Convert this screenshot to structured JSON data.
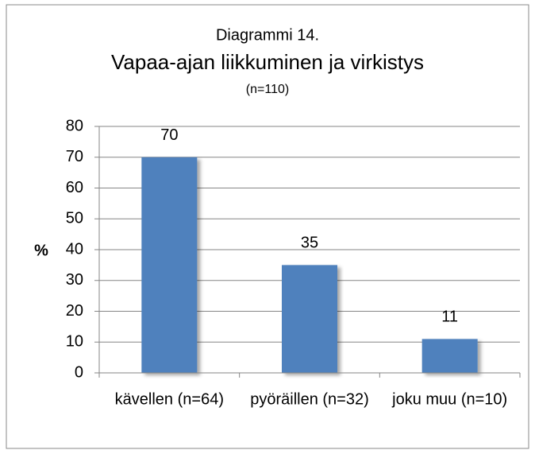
{
  "chart_data": {
    "type": "bar",
    "title_lines": [
      "Diagrammi 14.",
      "Vapaa-ajan liikkuminen ja virkistys",
      "(n=110)"
    ],
    "y_label": "%",
    "categories": [
      "kävellen (n=64)",
      "pyöräillen (n=32)",
      "joku muu (n=10)"
    ],
    "values": [
      70,
      35,
      11
    ],
    "color": "#4f81bd",
    "ylim": [
      0,
      80
    ],
    "yticks": [
      0,
      10,
      20,
      30,
      40,
      50,
      60,
      70,
      80
    ],
    "grid": true
  }
}
